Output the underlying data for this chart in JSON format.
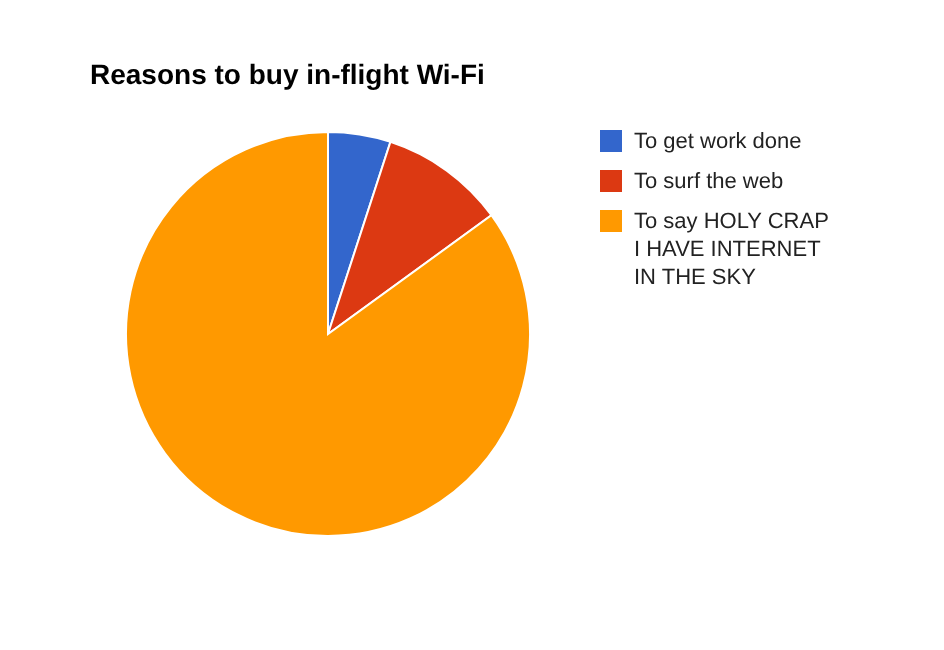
{
  "chart_data": {
    "type": "pie",
    "title": "Reasons to buy in-flight Wi-Fi",
    "categories": [
      "To get work done",
      "To surf the web",
      "To say HOLY CRAP I HAVE INTERNET IN THE SKY"
    ],
    "values": [
      5,
      10,
      85
    ],
    "colors": [
      "#3366cc",
      "#dc3912",
      "#ff9900"
    ],
    "legend": "right"
  }
}
